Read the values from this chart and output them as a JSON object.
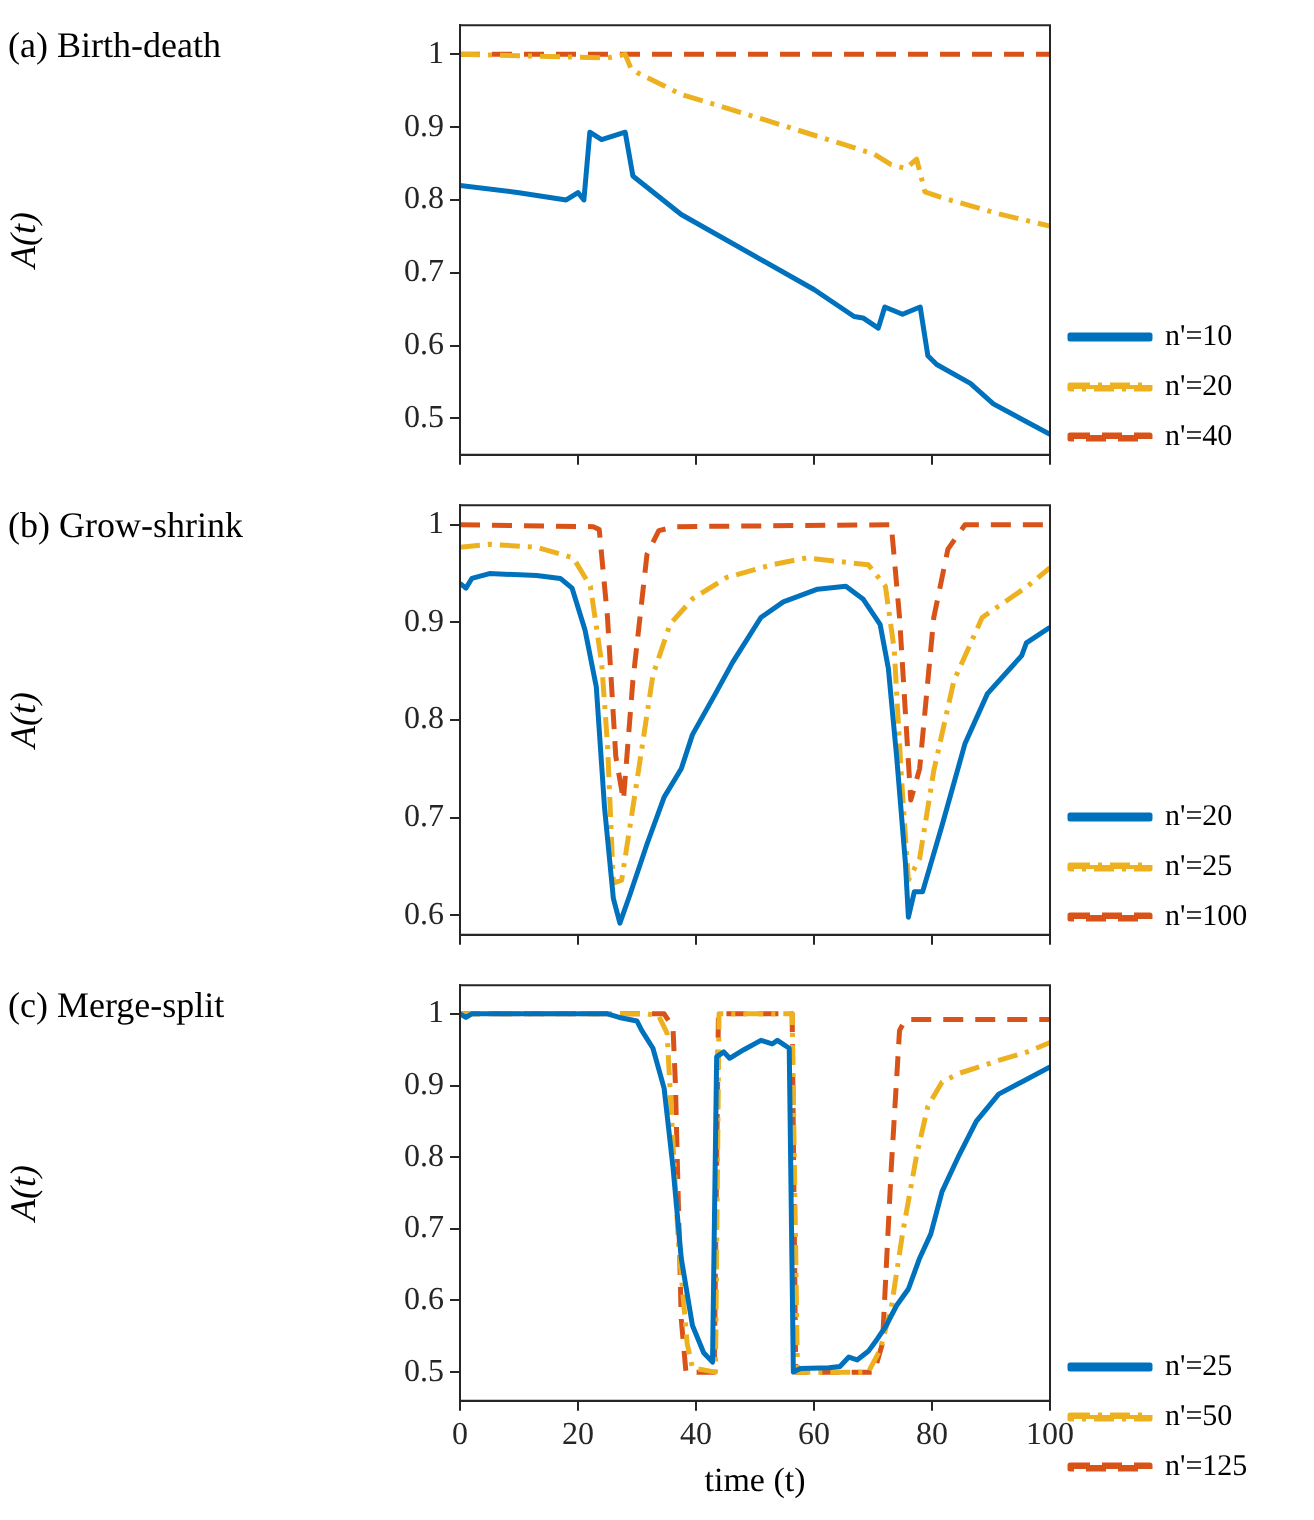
{
  "chart_data": [
    {
      "type": "line",
      "title": "(a) Birth-death",
      "ylabel": "A(t)",
      "xlim": [
        0,
        100
      ],
      "xticks": [
        0,
        20,
        40,
        60,
        80,
        100
      ],
      "ylim": [
        0.45,
        1.04
      ],
      "yticks": [
        0.5,
        0.6,
        0.7,
        0.8,
        0.9,
        1
      ],
      "tick_labels": "y",
      "legend": "right",
      "grid": false,
      "marker": "none",
      "series": [
        {
          "name": "n'=10",
          "color": "#0072bd",
          "line_style": "solid",
          "x": [
            0,
            10,
            18,
            20,
            21,
            22,
            24,
            28,
            28.5,
            29.3,
            37.5,
            60,
            66.8,
            68.3,
            70.9,
            72,
            75,
            78,
            79.3,
            80.8,
            86.5,
            90.4,
            100
          ],
          "values": [
            0.82,
            0.81,
            0.8,
            0.81,
            0.8,
            0.893,
            0.883,
            0.893,
            0.87,
            0.833,
            0.78,
            0.677,
            0.64,
            0.638,
            0.624,
            0.653,
            0.643,
            0.653,
            0.586,
            0.574,
            0.548,
            0.52,
            0.478
          ]
        },
        {
          "name": "n'=20",
          "color": "#edb120",
          "line_style": "dashdot",
          "x": [
            0,
            25,
            28,
            29,
            30,
            37.5,
            52.9,
            70.2,
            73,
            75.5,
            77.4,
            78.8,
            81.7,
            91.3,
            100
          ],
          "values": [
            1,
            0.995,
            1,
            0.98,
            0.975,
            0.945,
            0.907,
            0.863,
            0.849,
            0.843,
            0.856,
            0.811,
            0.803,
            0.781,
            0.764
          ]
        },
        {
          "name": "n'=40",
          "color": "#d95319",
          "line_style": "dashed",
          "x": [
            0,
            100
          ],
          "values": [
            1,
            1
          ]
        }
      ]
    },
    {
      "type": "line",
      "title": "(b) Grow-shrink",
      "ylabel": "A(t)",
      "xlim": [
        0,
        100
      ],
      "xticks": [
        0,
        20,
        40,
        60,
        80,
        100
      ],
      "ylim": [
        0.58,
        1.02
      ],
      "yticks": [
        0.6,
        0.7,
        0.8,
        0.9,
        1
      ],
      "tick_labels": "y",
      "legend": "right",
      "grid": false,
      "marker": "none",
      "series": [
        {
          "name": "n'=20",
          "color": "#0072bd",
          "line_style": "solid",
          "x": [
            0,
            1,
            2,
            5,
            13,
            17,
            19,
            21.2,
            23.1,
            24.5,
            26,
            27.1,
            28.8,
            31.7,
            34.6,
            37.5,
            39.4,
            43.3,
            46.2,
            51,
            54.8,
            60.6,
            65.4,
            68.3,
            71.2,
            72.6,
            74,
            75.5,
            76,
            77,
            78.4,
            81.7,
            85.6,
            89.4,
            95.2,
            96,
            100
          ],
          "values": [
            0.94,
            0.935,
            0.945,
            0.95,
            0.948,
            0.945,
            0.935,
            0.892,
            0.834,
            0.71,
            0.617,
            0.592,
            0.621,
            0.673,
            0.721,
            0.75,
            0.785,
            0.827,
            0.859,
            0.905,
            0.921,
            0.934,
            0.937,
            0.924,
            0.898,
            0.853,
            0.763,
            0.653,
            0.598,
            0.624,
            0.624,
            0.692,
            0.776,
            0.827,
            0.866,
            0.879,
            0.895
          ]
        },
        {
          "name": "n'=25",
          "color": "#edb120",
          "line_style": "dashdot",
          "x": [
            0,
            5,
            13,
            19.2,
            22.1,
            24,
            25,
            26,
            27.4,
            29.8,
            32.7,
            35.6,
            39.4,
            45.2,
            52.9,
            58.7,
            69.2,
            72.1,
            73.6,
            74.8,
            76,
            77.9,
            80.3,
            83.7,
            88.5,
            96.2,
            100
          ],
          "values": [
            0.977,
            0.98,
            0.977,
            0.966,
            0.937,
            0.859,
            0.775,
            0.633,
            0.636,
            0.73,
            0.846,
            0.898,
            0.924,
            0.946,
            0.959,
            0.966,
            0.959,
            0.937,
            0.872,
            0.743,
            0.636,
            0.658,
            0.748,
            0.84,
            0.905,
            0.937,
            0.956
          ]
        },
        {
          "name": "n'=100",
          "color": "#d95319",
          "line_style": "dashed",
          "x": [
            0,
            22.6,
            23.6,
            25,
            26.4,
            27.7,
            29.3,
            31.7,
            33.7,
            36.5,
            73.1,
            74.5,
            76.4,
            77.9,
            80.3,
            82.7,
            85.6,
            100
          ],
          "values": [
            1,
            0.998,
            0.995,
            0.905,
            0.763,
            0.718,
            0.84,
            0.97,
            0.994,
            0.998,
            1,
            0.905,
            0.718,
            0.75,
            0.905,
            0.975,
            1,
            1
          ]
        }
      ]
    },
    {
      "type": "line",
      "title": "(c) Merge-split",
      "xlabel": "time (t)",
      "ylabel": "A(t)",
      "xlim": [
        0,
        100
      ],
      "xticks": [
        0,
        20,
        40,
        60,
        80,
        100
      ],
      "ylim": [
        0.46,
        1.04
      ],
      "yticks": [
        0.5,
        0.6,
        0.7,
        0.8,
        0.9,
        1
      ],
      "legend": "right",
      "grid": false,
      "marker": "none",
      "series": [
        {
          "name": "n'=25",
          "color": "#0072bd",
          "line_style": "solid",
          "x": [
            0,
            1,
            2,
            25,
            27,
            30,
            30.8,
            32.7,
            34.6,
            36.1,
            37.5,
            39.4,
            41.3,
            42.8,
            43.5,
            44.7,
            45.7,
            48.1,
            51,
            52.9,
            53.8,
            55.8,
            56.5,
            57.7,
            62.5,
            64.4,
            65.9,
            67.3,
            69.2,
            70.7,
            72.1,
            74,
            76,
            77.9,
            79.8,
            81.7,
            84.6,
            87.5,
            91.3,
            95.2,
            100
          ],
          "values": [
            1,
            0.995,
            1,
            1,
            0.995,
            0.99,
            0.977,
            0.952,
            0.896,
            0.786,
            0.659,
            0.565,
            0.527,
            0.514,
            0.94,
            0.947,
            0.938,
            0.95,
            0.963,
            0.958,
            0.963,
            0.952,
            0.5,
            0.505,
            0.506,
            0.508,
            0.521,
            0.517,
            0.529,
            0.546,
            0.563,
            0.593,
            0.616,
            0.659,
            0.693,
            0.752,
            0.803,
            0.85,
            0.888,
            0.905,
            0.926
          ]
        },
        {
          "name": "n'=50",
          "color": "#edb120",
          "line_style": "dashdot",
          "x": [
            0,
            31.7,
            33.7,
            35.1,
            36.1,
            37,
            38.5,
            39.4,
            43.3,
            43.9,
            56.3,
            57.2,
            69.2,
            71.2,
            73.1,
            75,
            77.4,
            79.3,
            81.7,
            84.6,
            91.3,
            96.2,
            100
          ],
          "values": [
            1,
            1,
            0.997,
            0.973,
            0.82,
            0.684,
            0.54,
            0.506,
            0.5,
            1,
            1,
            0.5,
            0.5,
            0.531,
            0.59,
            0.693,
            0.803,
            0.871,
            0.905,
            0.917,
            0.935,
            0.947,
            0.96
          ]
        },
        {
          "name": "n'=125",
          "color": "#d95319",
          "line_style": "dashed",
          "x": [
            0,
            34.6,
            36.1,
            36.5,
            37.5,
            38.3,
            43.1,
            43.8,
            56.3,
            56.9,
            70.2,
            71.6,
            73.1,
            74.5,
            75.5,
            100
          ],
          "values": [
            1,
            1,
            0.981,
            0.905,
            0.574,
            0.5,
            0.5,
            1,
            1,
            0.5,
            0.5,
            0.54,
            0.786,
            0.977,
            0.992,
            0.992
          ]
        }
      ]
    }
  ]
}
